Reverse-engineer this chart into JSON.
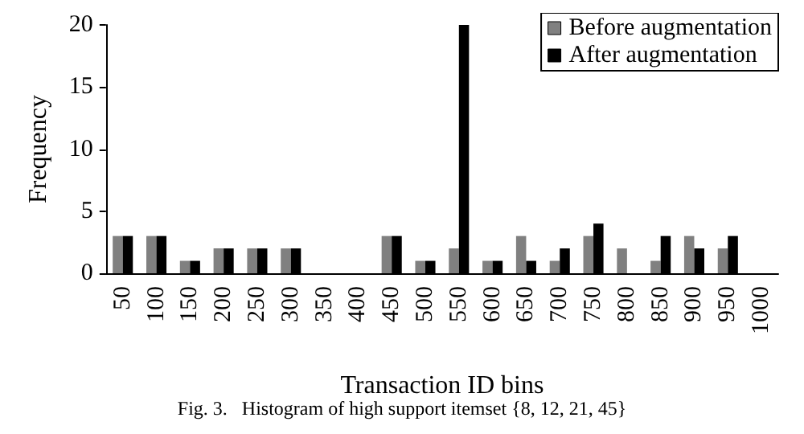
{
  "chart_data": {
    "type": "bar",
    "xlabel": "Transaction ID bins",
    "ylabel": "Frequency",
    "categories": [
      "50",
      "100",
      "150",
      "200",
      "250",
      "300",
      "350",
      "400",
      "450",
      "500",
      "550",
      "600",
      "650",
      "700",
      "750",
      "800",
      "850",
      "900",
      "950",
      "1000"
    ],
    "series": [
      {
        "name": "Before augmentation",
        "color": "#808080",
        "values": [
          3,
          3,
          1,
          2,
          2,
          2,
          0,
          0,
          3,
          1,
          2,
          1,
          3,
          1,
          3,
          2,
          1,
          3,
          2,
          0
        ]
      },
      {
        "name": "After augmentation",
        "color": "#000000",
        "values": [
          3,
          3,
          1,
          2,
          2,
          2,
          0,
          0,
          3,
          1,
          20,
          1,
          1,
          2,
          4,
          0,
          3,
          2,
          3,
          0
        ]
      }
    ],
    "ylim": [
      0,
      20
    ],
    "yticks": [
      0,
      5,
      10,
      15,
      20
    ],
    "grid": false,
    "legend": "top right",
    "annotations": [
      "Fig. 3.   Histogram of high support itemset {8, 12, 21, 45}"
    ]
  }
}
